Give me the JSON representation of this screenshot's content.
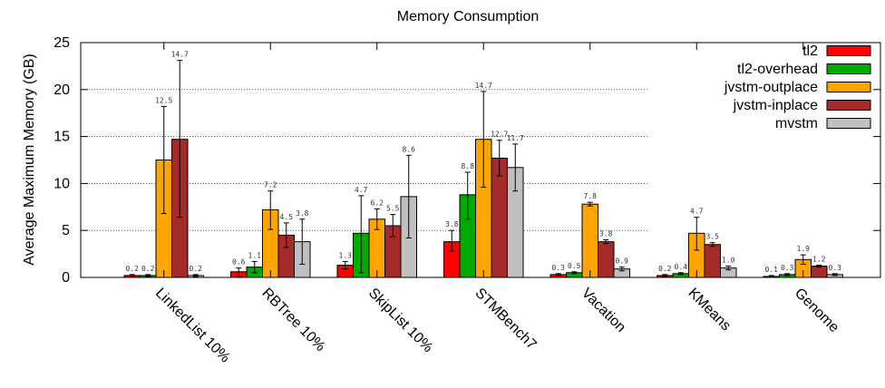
{
  "chart_data": {
    "type": "bar",
    "title": "Memory Consumption",
    "ylabel": "Average Maximum Memory (GB)",
    "xlabel": "",
    "ylim": [
      0,
      25
    ],
    "yticks": [
      0,
      5,
      10,
      15,
      20,
      25
    ],
    "grid": true,
    "legend_position": "top-right",
    "categories": [
      "LinkedList 10%",
      "RBTree 10%",
      "SkipList 10%",
      "STMBench7",
      "Vacation",
      "KMeans",
      "Genome"
    ],
    "series": [
      {
        "name": "tl2",
        "color": "#ff0000",
        "values": [
          0.2,
          0.6,
          1.3,
          3.8,
          0.3,
          0.2,
          0.1
        ],
        "err_low": [
          0.0,
          0.1,
          0.9,
          2.8,
          0.2,
          0.1,
          0.1
        ],
        "err_high": [
          0.3,
          1.0,
          1.7,
          5.0,
          0.4,
          0.3,
          0.2
        ],
        "labels": [
          "0.2",
          "0.6",
          "1.3",
          "3.8",
          "0.3",
          "0.2",
          "0.1"
        ]
      },
      {
        "name": "tl2-overhead",
        "color": "#00aa00",
        "values": [
          0.2,
          1.1,
          4.7,
          8.8,
          0.5,
          0.4,
          0.3
        ],
        "err_low": [
          0.1,
          0.5,
          0.5,
          6.2,
          0.4,
          0.3,
          0.2
        ],
        "err_high": [
          0.3,
          1.7,
          8.7,
          11.2,
          0.6,
          0.5,
          0.4
        ],
        "labels": [
          "0.2",
          "1.1",
          "4.7",
          "8.8",
          "0.5",
          "0.4",
          "0.3"
        ]
      },
      {
        "name": "jvstm-outplace",
        "color": "#ffa500",
        "values": [
          12.5,
          7.2,
          6.2,
          14.7,
          7.8,
          4.7,
          1.9
        ],
        "err_low": [
          6.8,
          5.1,
          5.1,
          9.6,
          7.6,
          2.9,
          1.4
        ],
        "err_high": [
          18.2,
          9.2,
          7.3,
          19.8,
          8.0,
          6.4,
          2.4
        ],
        "labels": [
          "12.5",
          "7.2",
          "6.2",
          "14.7",
          "7.8",
          "4.7",
          "1.9"
        ]
      },
      {
        "name": "jvstm-inplace",
        "color": "#a52a2a",
        "values": [
          14.7,
          4.5,
          5.5,
          12.7,
          3.8,
          3.5,
          1.2
        ],
        "err_low": [
          6.4,
          3.2,
          4.3,
          10.8,
          3.6,
          3.3,
          1.1
        ],
        "err_high": [
          23.1,
          5.8,
          6.7,
          14.6,
          4.0,
          3.7,
          1.3
        ],
        "labels": [
          "14.7",
          "4.5",
          "5.5",
          "12.7",
          "3.8",
          "3.5",
          "1.2"
        ]
      },
      {
        "name": "mvstm",
        "color": "#c0c0c0",
        "values": [
          0.2,
          3.8,
          8.6,
          11.7,
          0.9,
          1.0,
          0.3
        ],
        "err_low": [
          0.1,
          1.4,
          4.2,
          9.2,
          0.7,
          0.8,
          0.2
        ],
        "err_high": [
          0.3,
          6.2,
          13.0,
          14.2,
          1.1,
          1.2,
          0.4
        ],
        "labels": [
          "0.2",
          "3.8",
          "8.6",
          "11.7",
          "0.9",
          "1.0",
          "0.3"
        ]
      }
    ]
  }
}
